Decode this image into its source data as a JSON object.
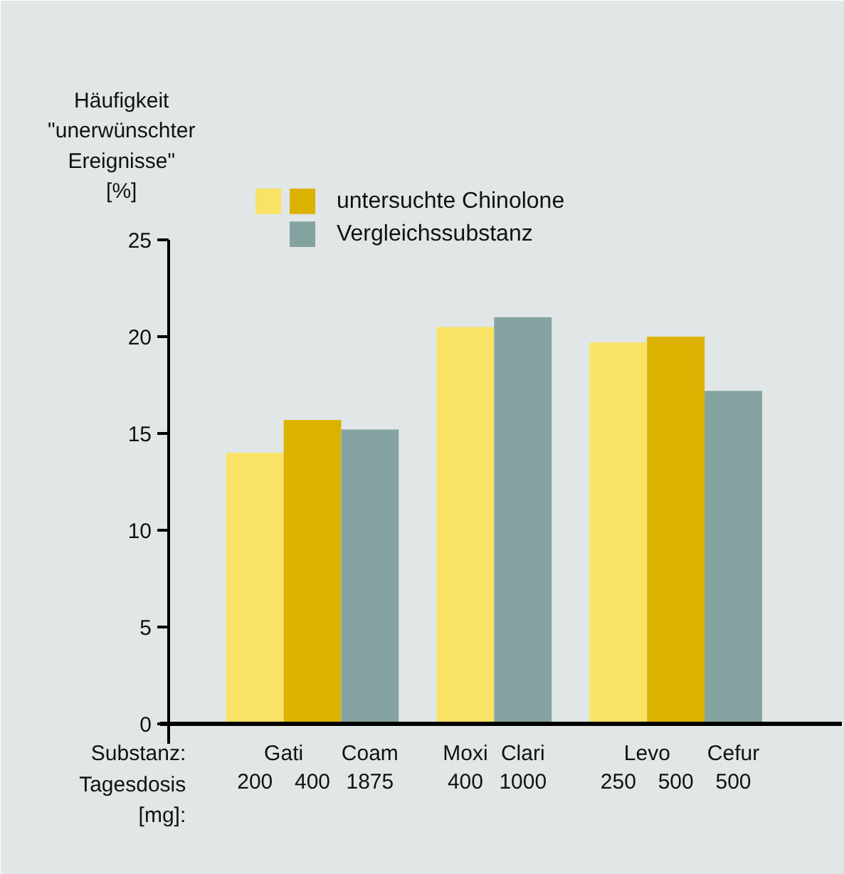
{
  "chart_data": {
    "type": "bar",
    "ylabel": "Häufigkeit\n\"unerwünschter\nEreignisse\"\n[%]",
    "categories": [
      "200",
      "400",
      "1875",
      "400",
      "1000",
      "250",
      "500",
      "500"
    ],
    "series": [
      {
        "color": "#fae264",
        "values": [
          14.0,
          null,
          null,
          20.5,
          null,
          19.7,
          null,
          null
        ]
      },
      {
        "name": "untersuchte Chinolone",
        "color": "#dbb200",
        "values": [
          null,
          15.7,
          null,
          null,
          null,
          null,
          20.0,
          null
        ]
      },
      {
        "name": "Vergleichssubstanz",
        "color": "#84a2a0",
        "values": [
          null,
          null,
          15.2,
          null,
          21.0,
          null,
          null,
          17.2
        ]
      }
    ],
    "ylim": [
      0,
      25
    ],
    "yticks": [
      0,
      5,
      10,
      15,
      20,
      25
    ],
    "legend": "top",
    "annotations": [
      "Substanz:",
      "Tagesdosis [mg]:",
      "Gati",
      "Coam",
      "Moxi",
      "Clari",
      "Levo",
      "Cefur"
    ]
  }
}
